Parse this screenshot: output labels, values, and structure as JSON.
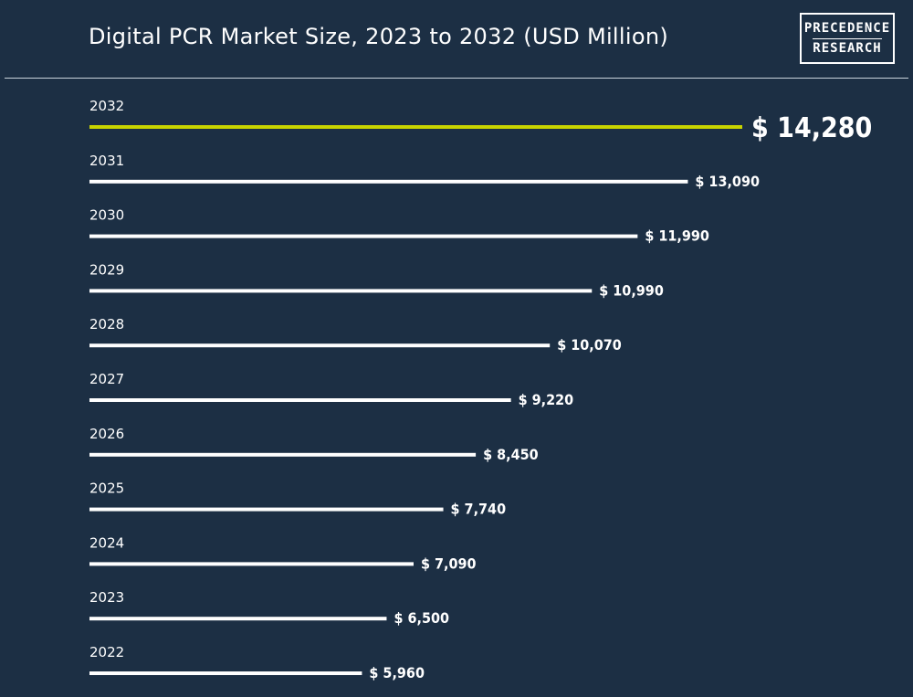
{
  "header": {
    "title": "Digital PCR Market Size, 2023 to 2032 (USD Million)",
    "logo_line1": "PRECEDENCE",
    "logo_line2": "RESEARCH"
  },
  "colors": {
    "background": "#1c2f44",
    "bar": "#ffffff",
    "highlight_bar": "#c8d400",
    "text": "#ffffff"
  },
  "chart_data": {
    "type": "bar",
    "orientation": "horizontal",
    "title": "Digital PCR Market Size, 2023 to 2032 (USD Million)",
    "categories": [
      "2032",
      "2031",
      "2030",
      "2029",
      "2028",
      "2027",
      "2026",
      "2025",
      "2024",
      "2023",
      "2022"
    ],
    "values": [
      14280,
      13090,
      11990,
      10990,
      10070,
      9220,
      8450,
      7740,
      7090,
      6500,
      5960
    ],
    "value_labels": [
      "$ 14,280",
      "$ 13,090",
      "$ 11,990",
      "$ 10,990",
      "$ 10,070",
      "$ 9,220",
      "$ 8,450",
      "$ 7,740",
      "$ 7,090",
      "$ 6,500",
      "$ 5,960"
    ],
    "highlight_category": "2032",
    "xlim": [
      0,
      14280
    ],
    "grid": false,
    "legend": "none"
  }
}
